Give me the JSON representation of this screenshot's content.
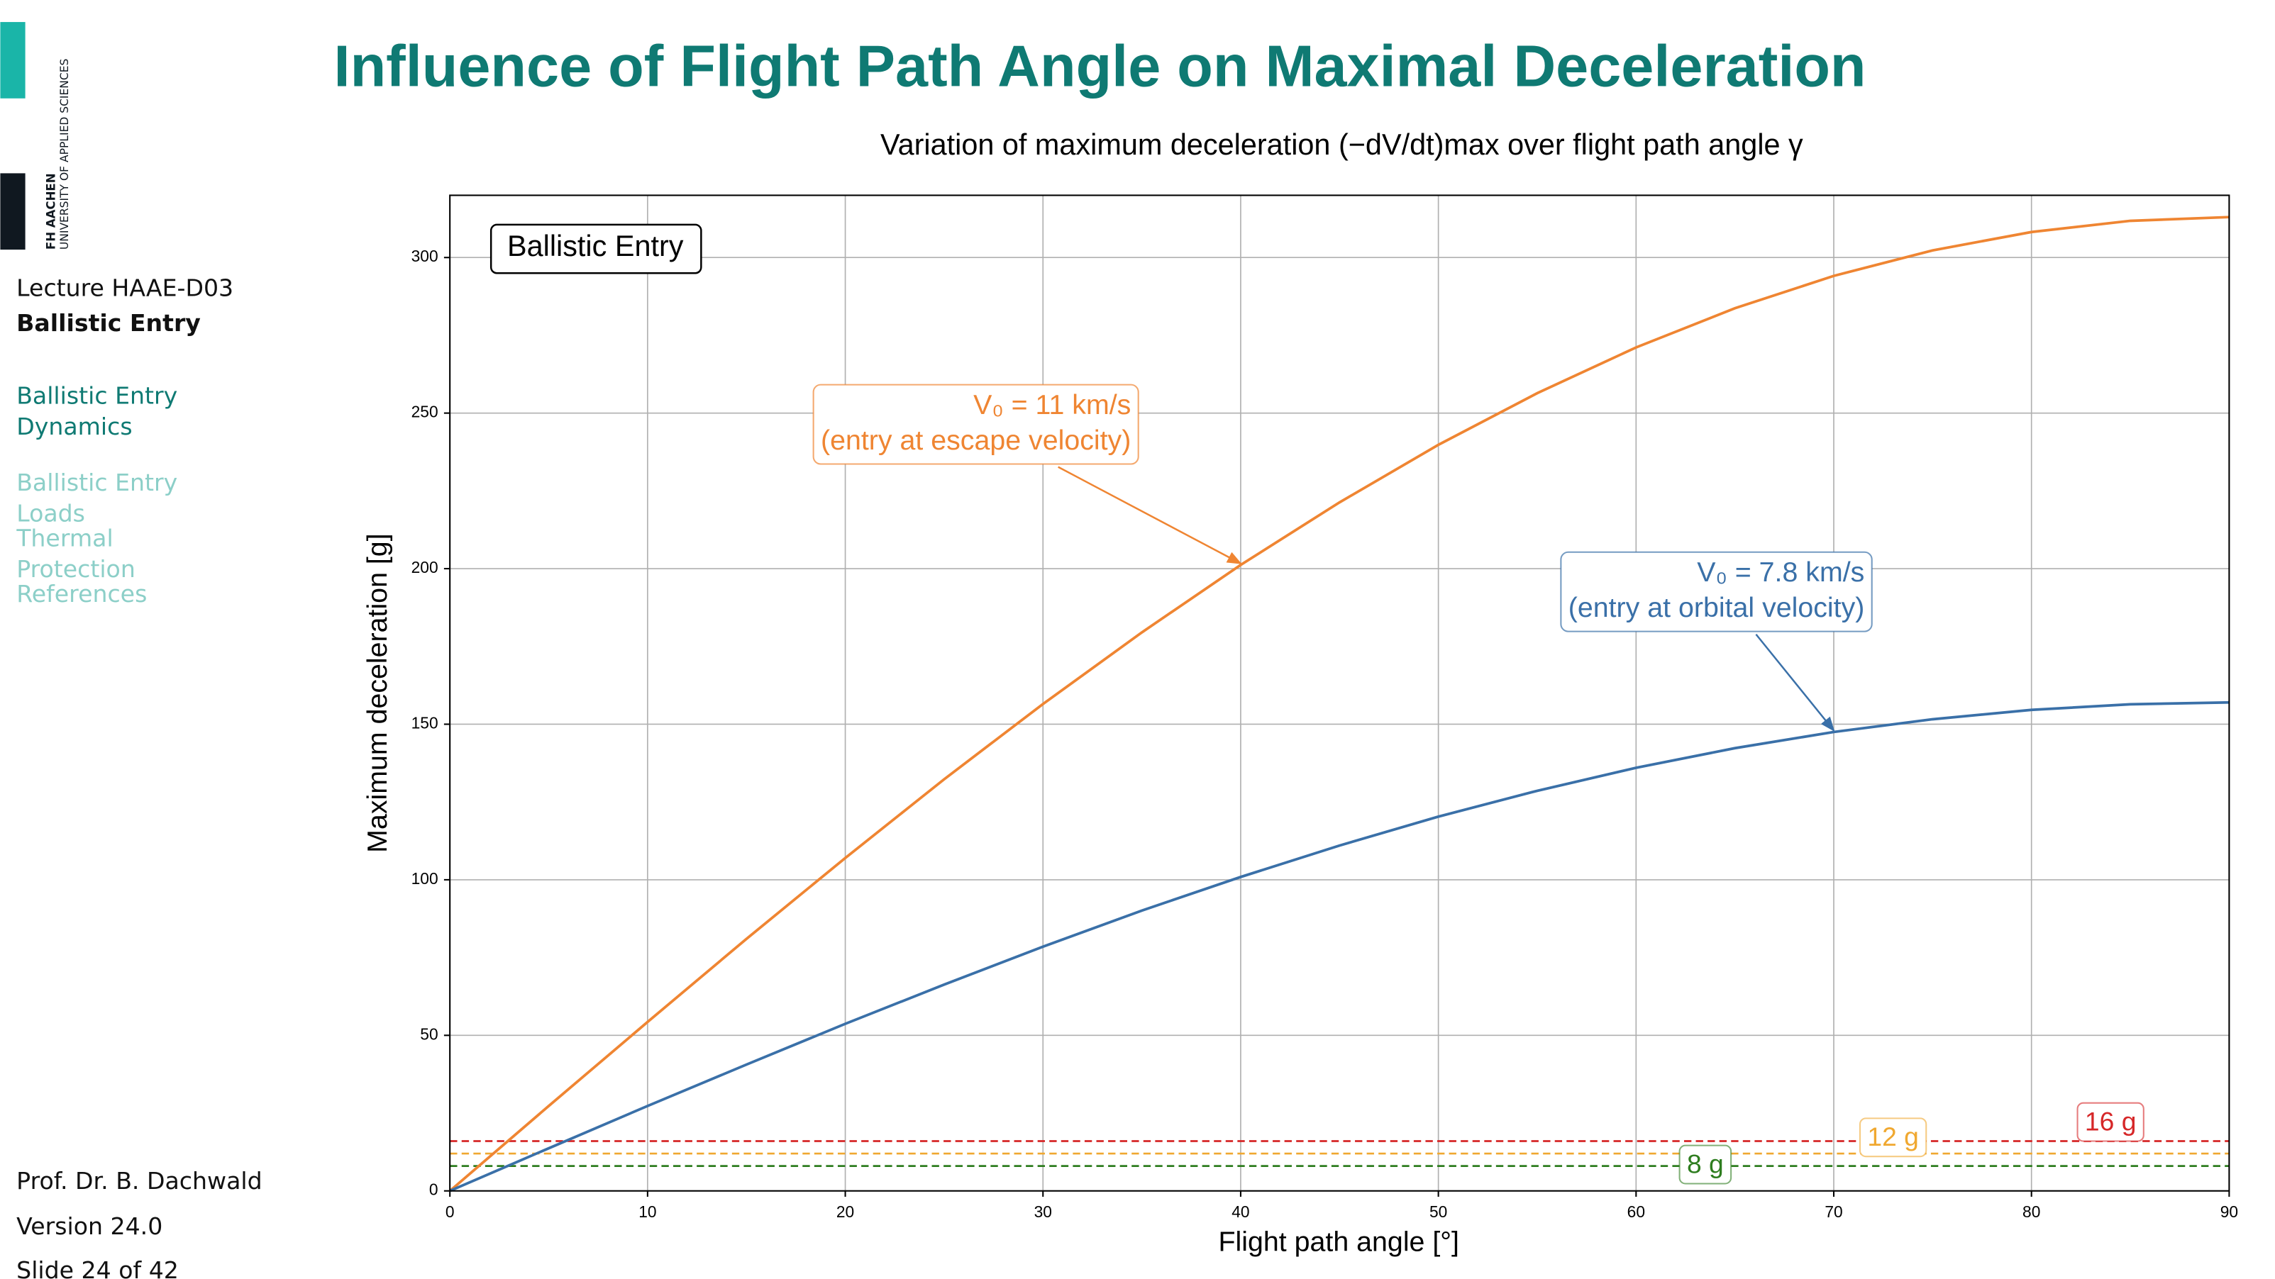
{
  "logo": {
    "name": "FH AACHEN",
    "subtitle": "UNIVERSITY OF APPLIED SCIENCES"
  },
  "slide": {
    "title": "Influence of Flight Path Angle on Maximal Deceleration",
    "lecture": "Lecture HAAE-D03",
    "section": "Ballistic Entry",
    "nav": [
      "Ballistic Entry Dynamics",
      "Ballistic Entry Loads",
      "Thermal Protection",
      "References"
    ],
    "author": "Prof. Dr. B. Dachwald",
    "version": "Version 24.0",
    "slide_number": "Slide 24 of 42"
  },
  "chart_data": {
    "type": "line",
    "title": "Variation of maximum deceleration (−dV/dt)max over flight path angle γ",
    "x_label": "Flight path angle [°]",
    "y_label": "Maximum deceleration [g]",
    "box_label": "Ballistic Entry",
    "x": [
      0,
      5,
      10,
      15,
      20,
      25,
      30,
      35,
      40,
      45,
      50,
      55,
      60,
      65,
      70,
      75,
      80,
      85,
      90
    ],
    "series": [
      {
        "name": "V₀ = 11 km/s",
        "annotation": "(entry at escape velocity)",
        "color": "#ef8532",
        "values": [
          0,
          27.3,
          54.3,
          81.0,
          107.0,
          132.3,
          156.5,
          179.5,
          201.2,
          221.3,
          239.8,
          256.4,
          271.1,
          283.7,
          294.1,
          302.3,
          308.2,
          311.8,
          313
        ]
      },
      {
        "name": "V₀ = 7.8 km/s",
        "annotation": "(entry at orbital velocity)",
        "color": "#3a70a8",
        "values": [
          0,
          13.7,
          27.3,
          40.6,
          53.7,
          66.3,
          78.5,
          90.1,
          100.9,
          111.0,
          120.3,
          128.6,
          136.0,
          142.3,
          147.5,
          151.6,
          154.6,
          156.4,
          157
        ]
      }
    ],
    "reference_lines": [
      {
        "value": 16,
        "label": "16 g",
        "color": "#d62728"
      },
      {
        "value": 12,
        "label": "12 g",
        "color": "#f0a830"
      },
      {
        "value": 8,
        "label": "8 g",
        "color": "#2e7d1f"
      }
    ],
    "xlim": [
      0,
      90
    ],
    "ylim": [
      0,
      320
    ],
    "xticks": [
      0,
      10,
      20,
      30,
      40,
      50,
      60,
      70,
      80,
      90
    ],
    "yticks": [
      0,
      50,
      100,
      150,
      200,
      250,
      300
    ],
    "grid": true
  }
}
